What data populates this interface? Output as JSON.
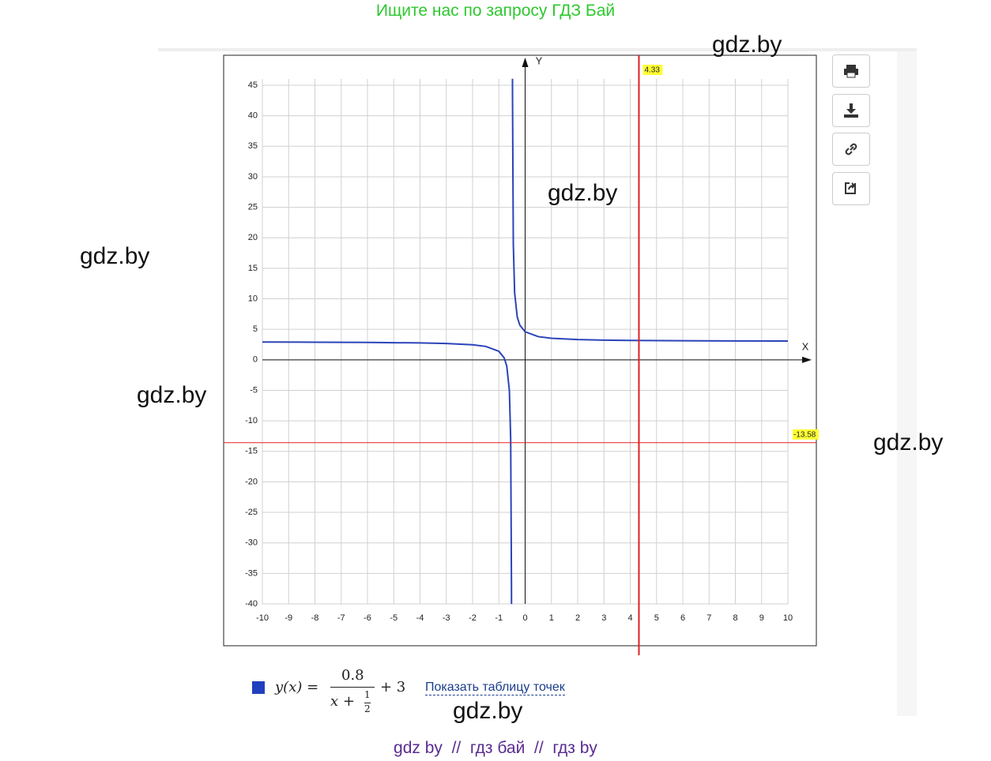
{
  "header": {
    "banner": "Ищите нас по запросу ГДЗ Бай"
  },
  "watermarks": [
    "gdz.by",
    "gdz.by",
    "gdz.by",
    "gdz.by",
    "gdz.by",
    "gdz.by"
  ],
  "chart_data": {
    "type": "line",
    "x_label": "X",
    "y_label": "Y",
    "xlim": [
      -10,
      10
    ],
    "ylim": [
      -40,
      45
    ],
    "xticks": [
      -10,
      -9,
      -8,
      -7,
      -6,
      -5,
      -4,
      -3,
      -2,
      -1,
      0,
      1,
      2,
      3,
      4,
      5,
      6,
      7,
      8,
      9,
      10
    ],
    "yticks": [
      -40,
      -35,
      -30,
      -25,
      -20,
      -15,
      -10,
      -5,
      0,
      5,
      10,
      15,
      20,
      25,
      30,
      35,
      40,
      45
    ],
    "grid": true,
    "series": [
      {
        "color": "#2b44b8",
        "x": [
          -10,
          -8,
          -6,
          -4,
          -3,
          -2,
          -1.5,
          -1,
          -0.8,
          -0.7,
          -0.6,
          -0.55,
          -0.52,
          -0.5186,
          -0.5,
          -0.4814,
          -0.48,
          -0.45,
          -0.4,
          -0.3,
          -0.2,
          0,
          0.5,
          1,
          2,
          3,
          4,
          6,
          8,
          10
        ],
        "values": [
          2.916,
          2.893,
          2.855,
          2.771,
          2.68,
          2.467,
          2.2,
          1.4,
          0.333,
          -1,
          -5,
          -13,
          -37,
          -40.01,
          null,
          46.06,
          43,
          19,
          11,
          7,
          5.667,
          4.6,
          3.8,
          3.533,
          3.32,
          3.229,
          3.178,
          3.123,
          3.094,
          3.076
        ]
      }
    ],
    "crosshair": {
      "x": 4.33,
      "y": -13.58,
      "color": "#e02020"
    }
  },
  "legend": {
    "color": "#2040c0",
    "lhs": "y(x) =",
    "numerator": "0.8",
    "denominator": "x +",
    "frac_num": "1",
    "frac_den": "2",
    "tail": "+ 3",
    "link": "Показать таблицу точек"
  },
  "footer": {
    "text": "gdz by  //  гдз бай  //  гдз by"
  }
}
